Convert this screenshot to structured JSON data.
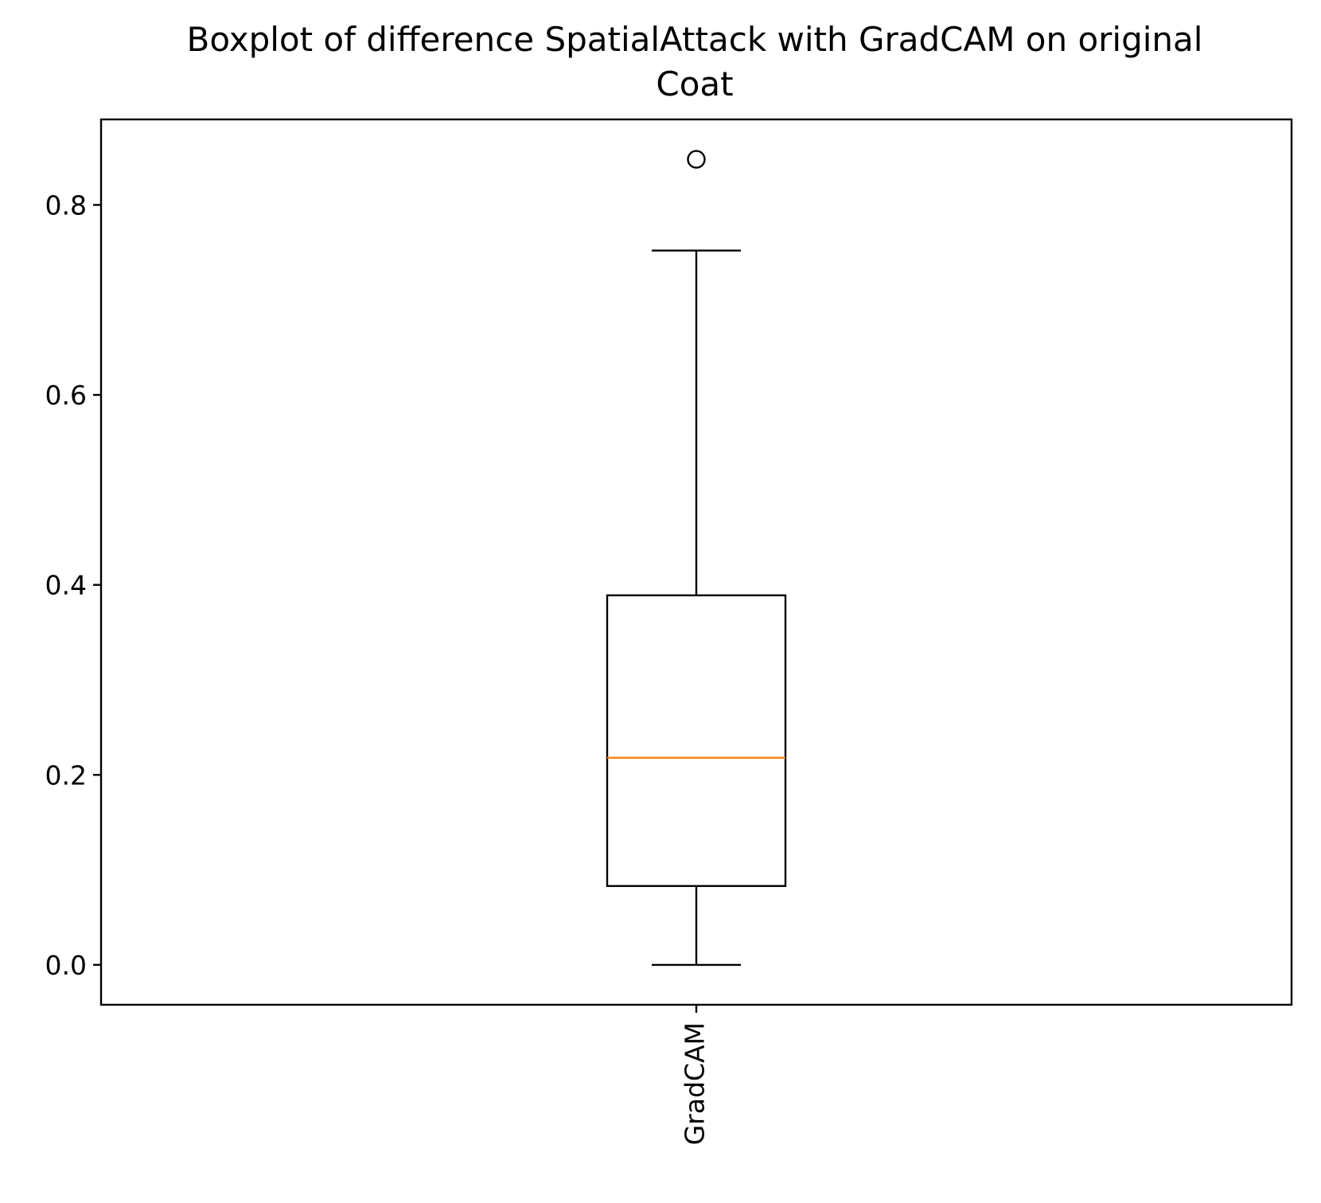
{
  "chart_data": {
    "type": "boxplot",
    "title_lines": [
      "Boxplot of difference SpatialAttack with GradCAM on original",
      "Coat"
    ],
    "xlabel": "",
    "ylabel": "",
    "categories": [
      "GradCAM"
    ],
    "yticks": [
      0.0,
      0.2,
      0.4,
      0.6,
      0.8
    ],
    "ytick_labels": [
      "0.0",
      "0.2",
      "0.4",
      "0.6",
      "0.8"
    ],
    "ylim": [
      -0.042,
      0.89
    ],
    "grid": false,
    "boxes": [
      {
        "label": "GradCAM",
        "whisker_low": 0.0,
        "q1": 0.083,
        "median": 0.218,
        "q3": 0.389,
        "whisker_high": 0.752,
        "outliers": [
          0.848
        ]
      }
    ],
    "colors": {
      "box": "#000000",
      "median": "#ff7f0e",
      "frame": "#000000",
      "background": "#ffffff"
    }
  }
}
